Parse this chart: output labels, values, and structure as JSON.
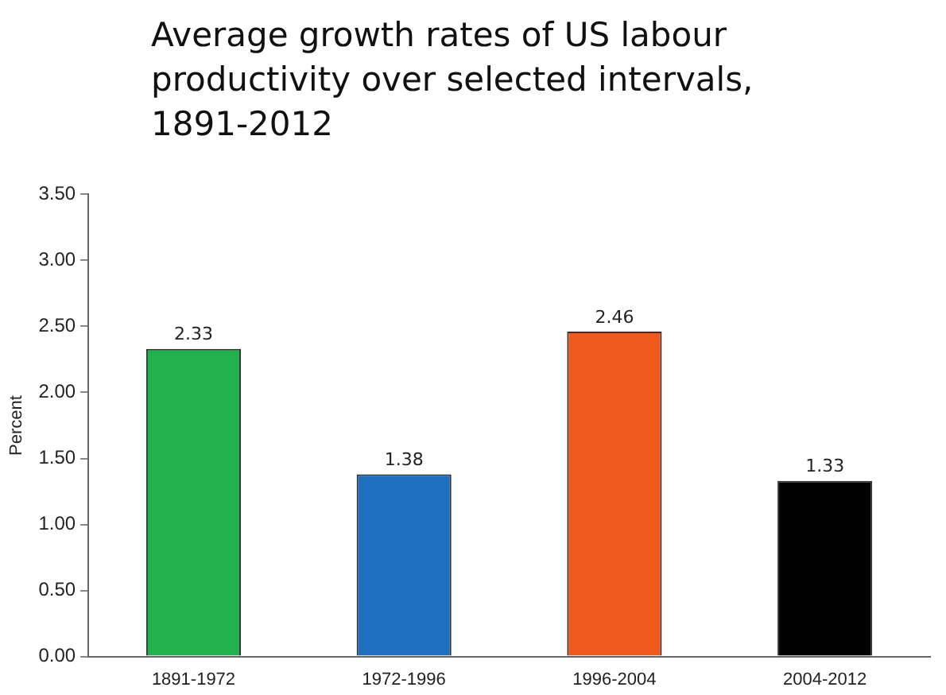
{
  "chart_data": {
    "type": "bar",
    "title": "Average growth rates of US labour productivity over selected intervals, 1891-2012",
    "ylabel": "Percent",
    "categories": [
      "1891-1972",
      "1972-1996",
      "1996-2004",
      "2004-2012"
    ],
    "values": [
      2.33,
      1.38,
      2.46,
      1.33
    ],
    "colors": [
      "#22b14c",
      "#1f6fbf",
      "#f05a1e",
      "#000000"
    ],
    "ylim": [
      0,
      3.5
    ],
    "yticks": [
      {
        "value": 0,
        "label": "0.00"
      },
      {
        "value": 0.5,
        "label": "0.50"
      },
      {
        "value": 1,
        "label": "1.00"
      },
      {
        "value": 1.5,
        "label": "1.50"
      },
      {
        "value": 2,
        "label": "2.00"
      },
      {
        "value": 2.5,
        "label": "2.50"
      },
      {
        "value": 3,
        "label": "3.00"
      },
      {
        "value": 3.5,
        "label": "3.50"
      }
    ],
    "grid": false,
    "legend": false,
    "data_labels": true
  }
}
